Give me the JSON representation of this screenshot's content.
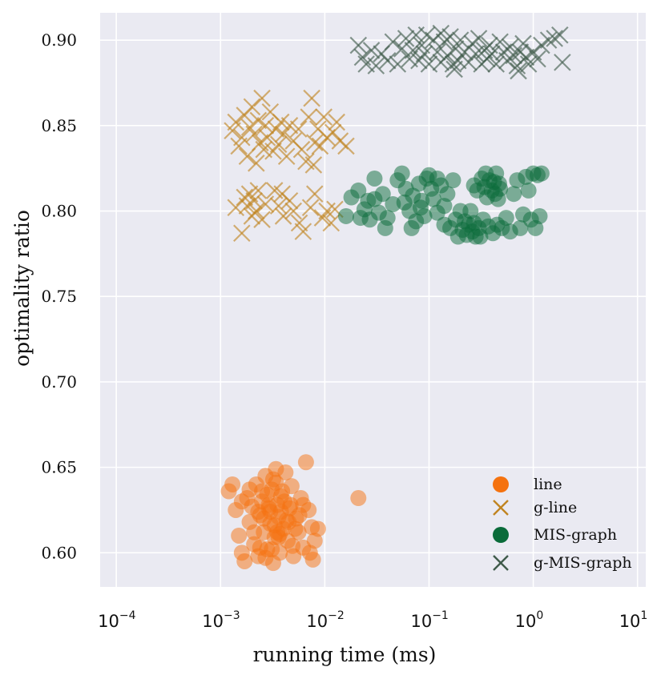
{
  "chart_data": {
    "type": "scatter",
    "title": "",
    "xlabel": "running time (ms)",
    "ylabel": "optimality ratio",
    "xscale": "log",
    "xlim": [
      7e-05,
      12
    ],
    "ylim": [
      0.58,
      0.916
    ],
    "grid": true,
    "legend_position": "bottom-right",
    "x_ticks": [
      {
        "base": "10",
        "exp": "−4",
        "value": 0.0001
      },
      {
        "base": "10",
        "exp": "−3",
        "value": 0.001
      },
      {
        "base": "10",
        "exp": "−2",
        "value": 0.01
      },
      {
        "base": "10",
        "exp": "−1",
        "value": 0.1
      },
      {
        "base": "10",
        "exp": "0",
        "value": 1
      },
      {
        "base": "10",
        "exp": "1",
        "value": 10
      }
    ],
    "y_ticks": [
      "0.60",
      "0.65",
      "0.70",
      "0.75",
      "0.80",
      "0.85",
      "0.90"
    ],
    "series": [
      {
        "name": "line",
        "marker": "circle",
        "color": "#f5720f",
        "points": [
          [
            0.0012,
            0.636
          ],
          [
            0.0013,
            0.64
          ],
          [
            0.0014,
            0.625
          ],
          [
            0.0015,
            0.61
          ],
          [
            0.0016,
            0.6
          ],
          [
            0.0017,
            0.595
          ],
          [
            0.0018,
            0.632
          ],
          [
            0.0019,
            0.618
          ],
          [
            0.002,
            0.627
          ],
          [
            0.0021,
            0.605
          ],
          [
            0.0022,
            0.64
          ],
          [
            0.0023,
            0.598
          ],
          [
            0.0024,
            0.622
          ],
          [
            0.0025,
            0.63
          ],
          [
            0.0026,
            0.612
          ],
          [
            0.0027,
            0.645
          ],
          [
            0.0028,
            0.602
          ],
          [
            0.0029,
            0.626
          ],
          [
            0.003,
            0.617
          ],
          [
            0.0031,
            0.637
          ],
          [
            0.0032,
            0.594
          ],
          [
            0.0033,
            0.609
          ],
          [
            0.0034,
            0.649
          ],
          [
            0.0035,
            0.628
          ],
          [
            0.0036,
            0.621
          ],
          [
            0.0037,
            0.6
          ],
          [
            0.0038,
            0.633
          ],
          [
            0.004,
            0.614
          ],
          [
            0.0042,
            0.647
          ],
          [
            0.0044,
            0.607
          ],
          [
            0.0046,
            0.626
          ],
          [
            0.0048,
            0.639
          ],
          [
            0.005,
            0.598
          ],
          [
            0.0053,
            0.62
          ],
          [
            0.0056,
            0.612
          ],
          [
            0.0059,
            0.632
          ],
          [
            0.0062,
            0.603
          ],
          [
            0.0066,
            0.653
          ],
          [
            0.007,
            0.625
          ],
          [
            0.0075,
            0.615
          ],
          [
            0.008,
            0.607
          ],
          [
            0.0086,
            0.614
          ],
          [
            0.0077,
            0.596
          ],
          [
            0.0072,
            0.6
          ],
          [
            0.0026,
            0.62
          ],
          [
            0.0029,
            0.628
          ],
          [
            0.0033,
            0.616
          ],
          [
            0.0036,
            0.609
          ],
          [
            0.0039,
            0.636
          ],
          [
            0.0043,
            0.619
          ],
          [
            0.0024,
            0.603
          ],
          [
            0.0027,
            0.597
          ],
          [
            0.003,
            0.624
          ],
          [
            0.0034,
            0.641
          ],
          [
            0.0037,
            0.611
          ],
          [
            0.0041,
            0.63
          ],
          [
            0.0045,
            0.618
          ],
          [
            0.0049,
            0.604
          ],
          [
            0.0019,
            0.637
          ],
          [
            0.0021,
            0.612
          ],
          [
            0.0023,
            0.624
          ],
          [
            0.0028,
            0.634
          ],
          [
            0.0031,
            0.602
          ],
          [
            0.0035,
            0.612
          ],
          [
            0.0038,
            0.624
          ],
          [
            0.0016,
            0.63
          ],
          [
            0.0025,
            0.636
          ],
          [
            0.0032,
            0.643
          ],
          [
            0.0047,
            0.628
          ],
          [
            0.0052,
            0.614
          ],
          [
            0.0057,
            0.622
          ],
          [
            0.0062,
            0.628
          ],
          [
            0.021,
            0.632
          ]
        ]
      },
      {
        "name": "g-line",
        "marker": "x",
        "color": "#c08420",
        "points": [
          [
            0.0013,
            0.847
          ],
          [
            0.0014,
            0.852
          ],
          [
            0.0015,
            0.838
          ],
          [
            0.0016,
            0.843
          ],
          [
            0.0017,
            0.856
          ],
          [
            0.0018,
            0.832
          ],
          [
            0.0019,
            0.849
          ],
          [
            0.002,
            0.861
          ],
          [
            0.0021,
            0.845
          ],
          [
            0.0022,
            0.828
          ],
          [
            0.0023,
            0.853
          ],
          [
            0.0024,
            0.84
          ],
          [
            0.0025,
            0.866
          ],
          [
            0.0026,
            0.836
          ],
          [
            0.0027,
            0.85
          ],
          [
            0.0028,
            0.843
          ],
          [
            0.003,
            0.858
          ],
          [
            0.0032,
            0.835
          ],
          [
            0.0034,
            0.848
          ],
          [
            0.0036,
            0.839
          ],
          [
            0.0038,
            0.852
          ],
          [
            0.004,
            0.845
          ],
          [
            0.0043,
            0.832
          ],
          [
            0.0046,
            0.85
          ],
          [
            0.005,
            0.841
          ],
          [
            0.0056,
            0.848
          ],
          [
            0.006,
            0.836
          ],
          [
            0.0066,
            0.829
          ],
          [
            0.007,
            0.855
          ],
          [
            0.0075,
            0.866
          ],
          [
            0.008,
            0.84
          ],
          [
            0.0086,
            0.848
          ],
          [
            0.009,
            0.838
          ],
          [
            0.0098,
            0.855
          ],
          [
            0.0105,
            0.843
          ],
          [
            0.012,
            0.846
          ],
          [
            0.013,
            0.852
          ],
          [
            0.014,
            0.841
          ],
          [
            0.016,
            0.838
          ],
          [
            0.0078,
            0.827
          ],
          [
            0.0018,
            0.803
          ],
          [
            0.0019,
            0.81
          ],
          [
            0.002,
            0.797
          ],
          [
            0.0021,
            0.806
          ],
          [
            0.0022,
            0.8
          ],
          [
            0.0023,
            0.812
          ],
          [
            0.0025,
            0.795
          ],
          [
            0.0027,
            0.804
          ],
          [
            0.0016,
            0.787
          ],
          [
            0.0017,
            0.808
          ],
          [
            0.0014,
            0.802
          ],
          [
            0.0033,
            0.812
          ],
          [
            0.0036,
            0.803
          ],
          [
            0.004,
            0.797
          ],
          [
            0.0046,
            0.806
          ],
          [
            0.005,
            0.8
          ],
          [
            0.0057,
            0.793
          ],
          [
            0.0073,
            0.802
          ],
          [
            0.008,
            0.81
          ],
          [
            0.0095,
            0.796
          ],
          [
            0.0105,
            0.8
          ],
          [
            0.0115,
            0.793
          ],
          [
            0.0125,
            0.801
          ],
          [
            0.0062,
            0.788
          ],
          [
            0.0039,
            0.81
          ]
        ]
      },
      {
        "name": "MIS-graph",
        "marker": "circle",
        "color": "#0a6b3a",
        "points": [
          [
            0.016,
            0.797
          ],
          [
            0.018,
            0.808
          ],
          [
            0.021,
            0.812
          ],
          [
            0.024,
            0.801
          ],
          [
            0.027,
            0.795
          ],
          [
            0.03,
            0.807
          ],
          [
            0.033,
            0.799
          ],
          [
            0.036,
            0.81
          ],
          [
            0.04,
            0.796
          ],
          [
            0.045,
            0.804
          ],
          [
            0.05,
            0.818
          ],
          [
            0.055,
            0.822
          ],
          [
            0.06,
            0.813
          ],
          [
            0.065,
            0.8
          ],
          [
            0.07,
            0.809
          ],
          [
            0.075,
            0.794
          ],
          [
            0.08,
            0.816
          ],
          [
            0.085,
            0.806
          ],
          [
            0.09,
            0.797
          ],
          [
            0.095,
            0.819
          ],
          [
            0.1,
            0.821
          ],
          [
            0.11,
            0.807
          ],
          [
            0.12,
            0.799
          ],
          [
            0.13,
            0.815
          ],
          [
            0.14,
            0.803
          ],
          [
            0.15,
            0.81
          ],
          [
            0.16,
            0.79
          ],
          [
            0.17,
            0.818
          ],
          [
            0.18,
            0.795
          ],
          [
            0.19,
            0.785
          ],
          [
            0.2,
            0.8
          ],
          [
            0.21,
            0.789
          ],
          [
            0.22,
            0.794
          ],
          [
            0.23,
            0.786
          ],
          [
            0.24,
            0.792
          ],
          [
            0.25,
            0.8
          ],
          [
            0.26,
            0.788
          ],
          [
            0.27,
            0.793
          ],
          [
            0.28,
            0.785
          ],
          [
            0.3,
            0.79
          ],
          [
            0.32,
            0.819
          ],
          [
            0.34,
            0.814
          ],
          [
            0.35,
            0.822
          ],
          [
            0.36,
            0.808
          ],
          [
            0.38,
            0.818
          ],
          [
            0.4,
            0.812
          ],
          [
            0.42,
            0.817
          ],
          [
            0.44,
            0.822
          ],
          [
            0.46,
            0.807
          ],
          [
            0.48,
            0.813
          ],
          [
            0.5,
            0.79
          ],
          [
            0.55,
            0.796
          ],
          [
            0.6,
            0.788
          ],
          [
            0.65,
            0.81
          ],
          [
            0.7,
            0.818
          ],
          [
            0.75,
            0.79
          ],
          [
            0.8,
            0.798
          ],
          [
            0.85,
            0.82
          ],
          [
            0.9,
            0.812
          ],
          [
            1.0,
            0.822
          ],
          [
            1.1,
            0.821
          ],
          [
            1.2,
            0.822
          ],
          [
            0.95,
            0.795
          ],
          [
            1.05,
            0.79
          ],
          [
            1.15,
            0.797
          ],
          [
            0.31,
            0.785
          ],
          [
            0.33,
            0.795
          ],
          [
            0.37,
            0.791
          ],
          [
            0.41,
            0.787
          ],
          [
            0.45,
            0.792
          ],
          [
            0.29,
            0.812
          ],
          [
            0.27,
            0.815
          ],
          [
            0.43,
            0.81
          ],
          [
            0.47,
            0.816
          ],
          [
            0.12,
            0.819
          ],
          [
            0.068,
            0.79
          ],
          [
            0.083,
            0.802
          ],
          [
            0.14,
            0.792
          ],
          [
            0.105,
            0.813
          ],
          [
            0.058,
            0.805
          ],
          [
            0.022,
            0.796
          ],
          [
            0.038,
            0.79
          ],
          [
            0.026,
            0.806
          ],
          [
            0.03,
            0.819
          ]
        ]
      },
      {
        "name": "g-MIS-graph",
        "marker": "x",
        "color": "#3f5a4a",
        "points": [
          [
            0.021,
            0.897
          ],
          [
            0.023,
            0.89
          ],
          [
            0.025,
            0.886
          ],
          [
            0.028,
            0.894
          ],
          [
            0.031,
            0.885
          ],
          [
            0.035,
            0.892
          ],
          [
            0.04,
            0.888
          ],
          [
            0.045,
            0.899
          ],
          [
            0.05,
            0.886
          ],
          [
            0.055,
            0.895
          ],
          [
            0.06,
            0.901
          ],
          [
            0.065,
            0.889
          ],
          [
            0.07,
            0.894
          ],
          [
            0.075,
            0.903
          ],
          [
            0.08,
            0.888
          ],
          [
            0.085,
            0.897
          ],
          [
            0.09,
            0.892
          ],
          [
            0.1,
            0.886
          ],
          [
            0.11,
            0.9
          ],
          [
            0.12,
            0.893
          ],
          [
            0.13,
            0.887
          ],
          [
            0.14,
            0.899
          ],
          [
            0.15,
            0.891
          ],
          [
            0.16,
            0.902
          ],
          [
            0.17,
            0.886
          ],
          [
            0.18,
            0.895
          ],
          [
            0.19,
            0.888
          ],
          [
            0.2,
            0.9
          ],
          [
            0.22,
            0.893
          ],
          [
            0.24,
            0.887
          ],
          [
            0.26,
            0.898
          ],
          [
            0.28,
            0.892
          ],
          [
            0.3,
            0.901
          ],
          [
            0.32,
            0.886
          ],
          [
            0.34,
            0.894
          ],
          [
            0.36,
            0.889
          ],
          [
            0.38,
            0.897
          ],
          [
            0.4,
            0.892
          ],
          [
            0.44,
            0.886
          ],
          [
            0.48,
            0.899
          ],
          [
            0.52,
            0.893
          ],
          [
            0.56,
            0.888
          ],
          [
            0.6,
            0.896
          ],
          [
            0.65,
            0.891
          ],
          [
            0.7,
            0.885
          ],
          [
            0.75,
            0.893
          ],
          [
            0.8,
            0.898
          ],
          [
            0.85,
            0.89
          ],
          [
            0.9,
            0.886
          ],
          [
            1.0,
            0.893
          ],
          [
            1.1,
            0.889
          ],
          [
            1.2,
            0.897
          ],
          [
            1.4,
            0.9
          ],
          [
            1.6,
            0.901
          ],
          [
            1.8,
            0.903
          ],
          [
            1.9,
            0.887
          ],
          [
            0.72,
            0.882
          ],
          [
            0.095,
            0.903
          ],
          [
            0.13,
            0.904
          ],
          [
            0.175,
            0.883
          ]
        ]
      }
    ]
  }
}
